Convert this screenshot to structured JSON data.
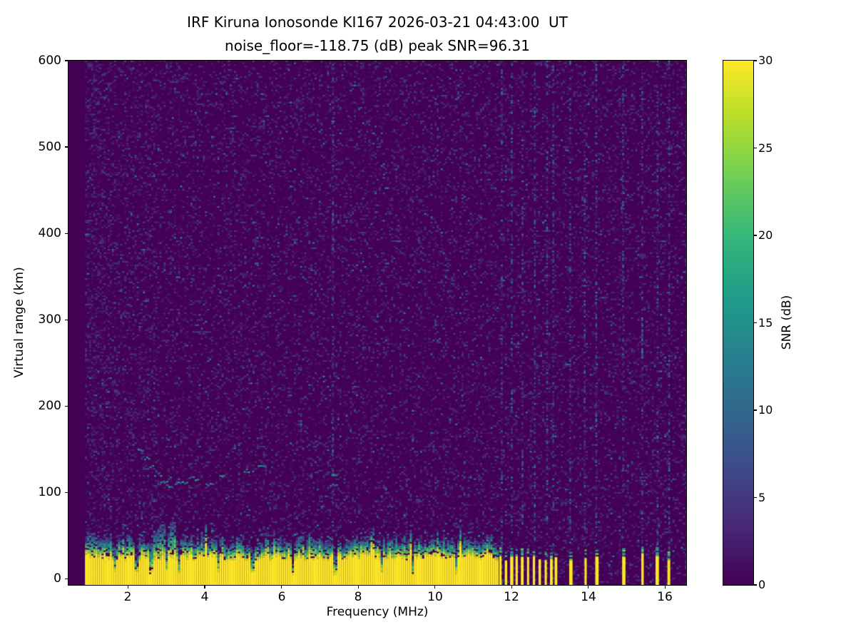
{
  "chart_data": {
    "type": "heatmap",
    "title": "IRF Kiruna Ionosonde KI167 2026-03-21 04:43:00  UT",
    "subtitle": "noise_floor=-118.75 (dB) peak SNR=96.31",
    "xlabel": "Frequency (MHz)",
    "ylabel": "Virtual range (km)",
    "xlim": [
      0.45,
      16.55
    ],
    "ylim": [
      -7,
      600
    ],
    "xticks": [
      "2",
      "4",
      "6",
      "8",
      "10",
      "12",
      "14",
      "16"
    ],
    "yticks": [
      "0",
      "100",
      "200",
      "300",
      "400",
      "500",
      "600"
    ],
    "colorbar": {
      "label": "SNR (dB)",
      "min": 0,
      "max": 30,
      "ticks": [
        "0",
        "5",
        "10",
        "15",
        "20",
        "25",
        "30"
      ],
      "colormap": "viridis"
    },
    "stats": {
      "station": "IRF Kiruna Ionosonde",
      "station_id": "KI167",
      "timestamp_ut": "2026-03-21 04:43:00",
      "noise_floor_db": -118.75,
      "peak_snr_db": 96.31
    },
    "heatmap": {
      "background_snr_db": 0,
      "speckle_max_snr_db": 12,
      "ground_clutter": {
        "freq_start_mhz": 0.88,
        "freq_end_mhz": 11.62,
        "top_km_min": 21,
        "top_km_max": 30,
        "snr_db": 30,
        "notches_mhz": [
          1.62,
          2.2,
          2.58,
          2.98,
          3.32,
          4.32,
          5.22,
          6.27,
          7.37,
          8.6,
          9.38,
          10.52
        ],
        "enhanced_region_mhz": [
          2.55,
          3.25
        ]
      },
      "rfi_bars_mhz": [
        11.68,
        11.82,
        11.96,
        12.1,
        12.24,
        12.4,
        12.55,
        12.7,
        12.86,
        13.0,
        13.12,
        13.5,
        13.9,
        14.18,
        14.88,
        15.38,
        15.75,
        16.06
      ],
      "rfi_stripes_mhz": [
        7.32,
        11.72,
        11.98,
        12.26,
        12.58,
        12.9,
        13.06,
        13.5,
        13.88,
        14.18,
        14.88,
        15.38,
        15.78,
        16.08
      ],
      "echo_trace_dashes": [
        [
          2.25,
          2.4,
          149
        ],
        [
          2.42,
          2.58,
          141
        ],
        [
          2.52,
          2.68,
          131
        ],
        [
          2.68,
          2.86,
          122
        ],
        [
          2.84,
          3.04,
          113
        ],
        [
          3.0,
          3.22,
          109
        ],
        [
          3.3,
          3.52,
          113
        ],
        [
          3.58,
          3.82,
          117
        ],
        [
          4.02,
          4.22,
          111
        ],
        [
          4.38,
          4.58,
          119
        ],
        [
          5.02,
          5.28,
          126
        ],
        [
          5.38,
          5.58,
          132
        ],
        [
          7.26,
          7.44,
          110
        ],
        [
          7.3,
          7.44,
          121
        ]
      ]
    }
  }
}
